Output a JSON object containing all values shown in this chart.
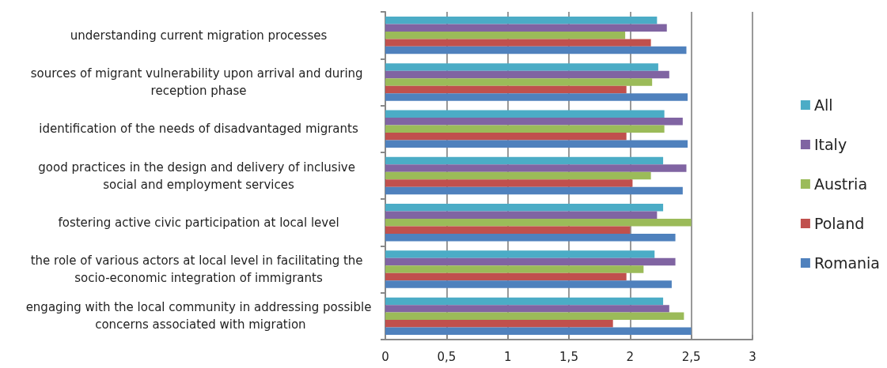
{
  "chart_data": {
    "type": "bar",
    "orientation": "horizontal",
    "categories": [
      "understanding current migration processes",
      "sources of migrant vulnerability upon arrival and during reception phase",
      "identification of the needs of disadvantaged migrants",
      "good practices in the design and delivery of inclusive social and employment services",
      "fostering active civic participation at local level",
      "the role of various actors at local level in facilitating the socio-economic integration of immigrants",
      "engaging with the local community in addressing possible concerns associated with migration"
    ],
    "series": [
      {
        "name": "All",
        "color": "#4bacc6",
        "values": [
          2.22,
          2.23,
          2.28,
          2.27,
          2.27,
          2.2,
          2.27
        ]
      },
      {
        "name": "Italy",
        "color": "#8064a2",
        "values": [
          2.3,
          2.32,
          2.43,
          2.46,
          2.22,
          2.37,
          2.32
        ]
      },
      {
        "name": "Austria",
        "color": "#9bbb59",
        "values": [
          1.96,
          2.18,
          2.28,
          2.17,
          2.5,
          2.11,
          2.44
        ]
      },
      {
        "name": "Poland",
        "color": "#c0504d",
        "values": [
          2.17,
          1.97,
          1.97,
          2.02,
          2.0,
          1.97,
          1.86
        ]
      },
      {
        "name": "Romania",
        "color": "#4f81bd",
        "values": [
          2.46,
          2.47,
          2.47,
          2.43,
          2.37,
          2.34,
          2.5
        ]
      }
    ],
    "xlim": [
      0,
      3
    ],
    "xticks": [
      0,
      {
        "value": 0.5,
        "label": "0,5"
      },
      1,
      {
        "value": 1.5,
        "label": "1,5"
      },
      2,
      {
        "value": 2.5,
        "label": "2,5"
      },
      3
    ],
    "grid": "x",
    "legend": "right"
  }
}
